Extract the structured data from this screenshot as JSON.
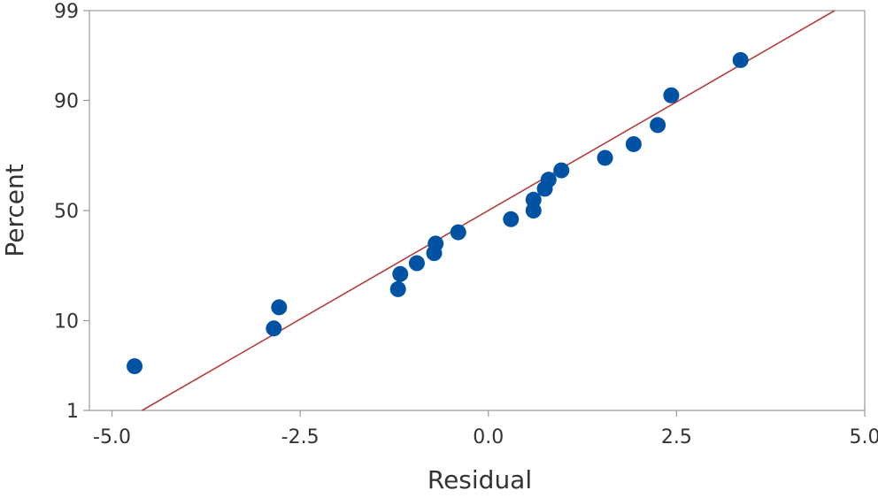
{
  "chart_data": {
    "type": "scatter",
    "title": "",
    "xlabel": "Residual",
    "ylabel": "Percent",
    "xlim": [
      -5.3,
      5.0
    ],
    "ylim_percent": [
      1,
      99
    ],
    "y_scale": "normal-probability",
    "x_ticks": [
      {
        "value": -5.0,
        "label": "-5.0"
      },
      {
        "value": -2.5,
        "label": "-2.5"
      },
      {
        "value": 0.0,
        "label": "0.0"
      },
      {
        "value": 2.5,
        "label": "2.5"
      },
      {
        "value": 5.0,
        "label": "5.0"
      }
    ],
    "y_ticks": [
      {
        "value": 1,
        "label": "1"
      },
      {
        "value": 10,
        "label": "10"
      },
      {
        "value": 50,
        "label": "50"
      },
      {
        "value": 90,
        "label": "90"
      },
      {
        "value": 99,
        "label": "99"
      }
    ],
    "grid": false,
    "colors": {
      "points": "#0052a5",
      "fit_line": "#b5403f",
      "frame": "#999999"
    },
    "fit_line": [
      {
        "x": -4.6,
        "percent": 1
      },
      {
        "x": 4.6,
        "percent": 99
      }
    ],
    "points": [
      {
        "x": -4.7,
        "percent": 3.5
      },
      {
        "x": -2.85,
        "percent": 8.5
      },
      {
        "x": -2.78,
        "percent": 13
      },
      {
        "x": -1.2,
        "percent": 18
      },
      {
        "x": -1.17,
        "percent": 23
      },
      {
        "x": -0.95,
        "percent": 27
      },
      {
        "x": -0.72,
        "percent": 31
      },
      {
        "x": -0.7,
        "percent": 35
      },
      {
        "x": -0.4,
        "percent": 40
      },
      {
        "x": 0.3,
        "percent": 46
      },
      {
        "x": 0.6,
        "percent": 50
      },
      {
        "x": 0.6,
        "percent": 55
      },
      {
        "x": 0.75,
        "percent": 60
      },
      {
        "x": 0.8,
        "percent": 64
      },
      {
        "x": 0.97,
        "percent": 68
      },
      {
        "x": 1.55,
        "percent": 73
      },
      {
        "x": 1.93,
        "percent": 78
      },
      {
        "x": 2.25,
        "percent": 84
      },
      {
        "x": 2.43,
        "percent": 91
      },
      {
        "x": 3.35,
        "percent": 96
      }
    ]
  }
}
